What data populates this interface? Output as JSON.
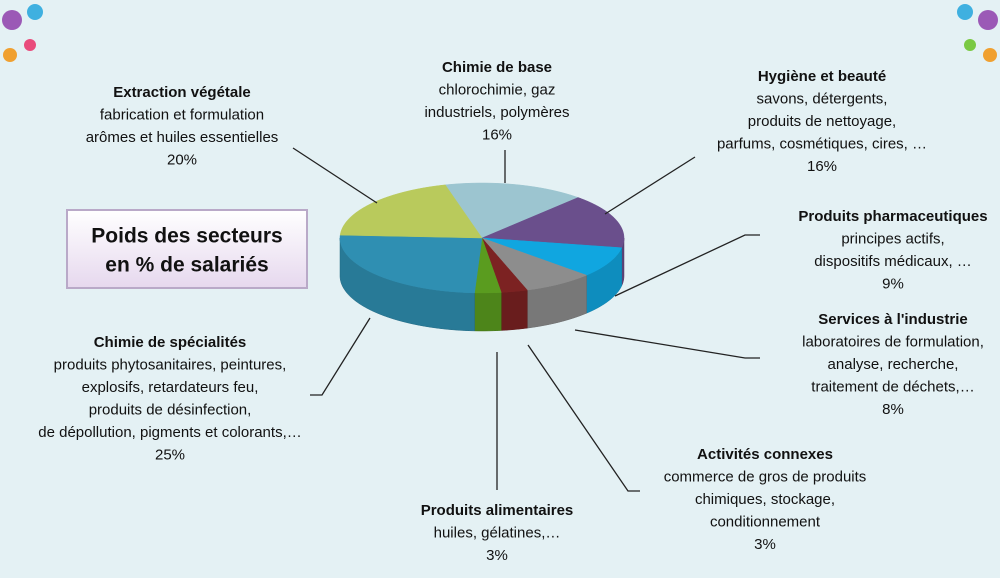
{
  "chart_data": {
    "type": "pie",
    "title": [
      "Poids des secteurs",
      "en % de salariés"
    ],
    "categories": [
      "Chimie de base",
      "Hygiène et beauté",
      "Produits pharmaceutiques",
      "Services à l'industrie",
      "Activités connexes",
      "Produits alimentaires",
      "Chimie de spécialités",
      "Extraction végétale"
    ],
    "descriptions": [
      [
        "chlorochimie, gaz",
        "industriels, polymères"
      ],
      [
        "savons, détergents,",
        "produits de nettoyage,",
        "parfums, cosmétiques, cires, …"
      ],
      [
        "principes actifs,",
        "dispositifs médicaux, …"
      ],
      [
        "laboratoires de formulation,",
        "analyse, recherche,",
        "traitement de  déchets,…"
      ],
      [
        "commerce de gros de produits",
        "chimiques, stockage,",
        "conditionnement"
      ],
      [
        "huiles, gélatines,…"
      ],
      [
        "produits phytosanitaires, peintures,",
        "explosifs, retardateurs feu,",
        "produits de désinfection,",
        "de dépollution, pigments et colorants,…"
      ],
      [
        "fabrication et formulation",
        "arômes et huiles essentielles"
      ]
    ],
    "values": [
      16,
      16,
      9,
      8,
      3,
      3,
      25,
      20
    ],
    "value_labels": [
      "16%",
      "16%",
      "9%",
      "8%",
      "3%",
      "3%",
      "25%",
      "20%"
    ],
    "colors": [
      "#9cc5d0",
      "#6a4f8c",
      "#10a6e0",
      "#8d8d8d",
      "#7c2222",
      "#5a9c1f",
      "#2f8fb2",
      "#b9ca5c"
    ]
  }
}
